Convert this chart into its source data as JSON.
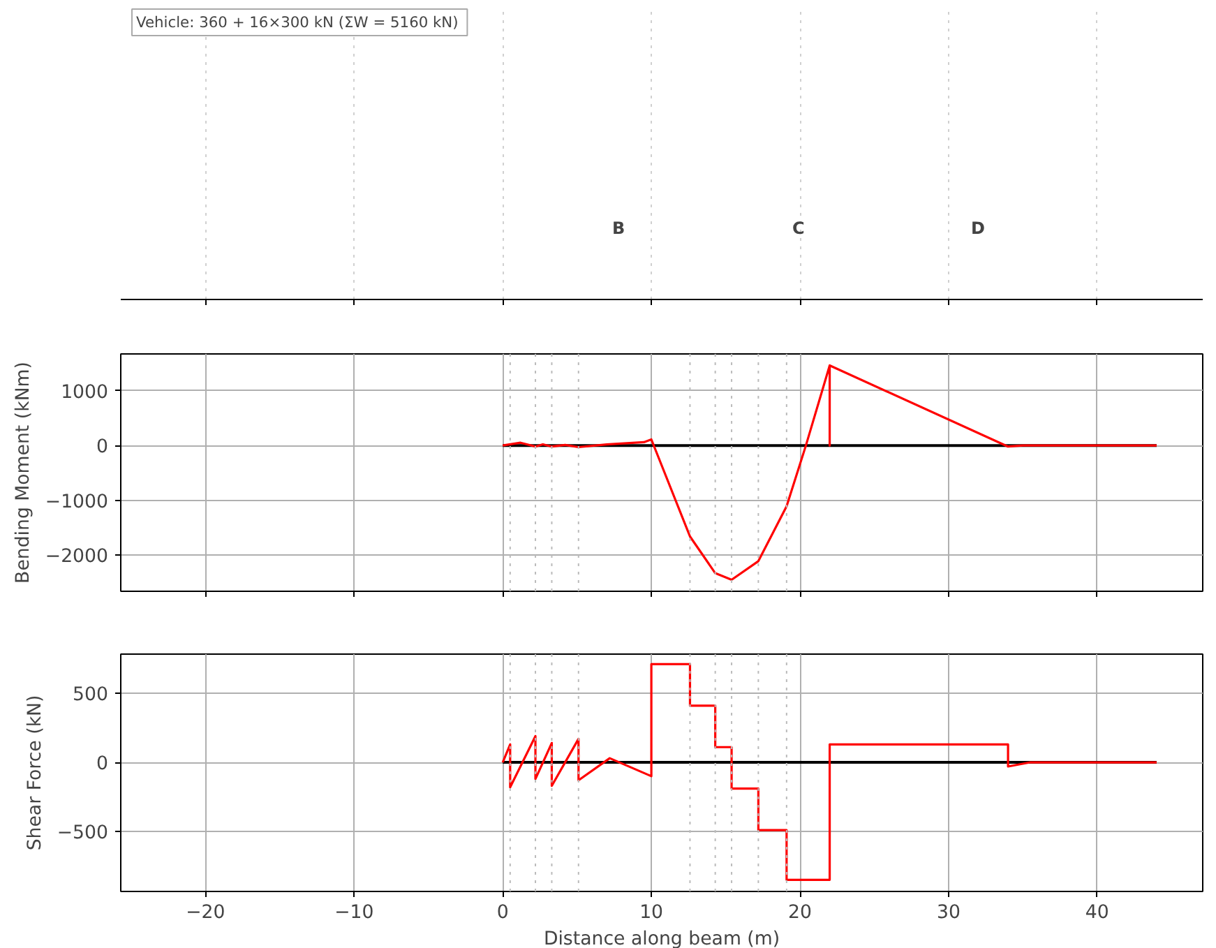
{
  "chart_data": [
    {
      "type": "other",
      "annotations": [
        "Vehicle: 360 + 16×300 kN  (ΣW = 5160 kN)",
        "B",
        "C",
        "D"
      ]
    },
    {
      "type": "line",
      "ylabel": "Bending Moment (kNm)",
      "xlim": [
        -25.7,
        47.1
      ],
      "ylim": [
        -2660,
        1670
      ],
      "xticks": [
        -20,
        -10,
        0,
        10,
        20,
        30,
        40
      ],
      "yticks": [
        -2000,
        -1000,
        0,
        1000
      ],
      "grid": true,
      "tick_labels": "y",
      "series": [
        {
          "color": "#000000",
          "x": [
            0,
            44
          ],
          "values": [
            0,
            0
          ]
        },
        {
          "color": "#ff0000",
          "x": [
            0,
            1.2,
            2.2,
            2.7,
            3.3,
            4.2,
            5.1,
            7,
            9.5,
            10,
            12.6,
            14.3,
            15.4,
            17.2,
            19.1,
            20.4,
            22,
            22,
            22,
            34,
            35,
            44
          ],
          "values": [
            0,
            50,
            -20,
            20,
            -20,
            10,
            -30,
            20,
            60,
            110,
            -1660,
            -2330,
            -2450,
            -2110,
            -1110,
            0,
            1460,
            0,
            1460,
            -20,
            0,
            0
          ]
        }
      ],
      "ref_lines": [
        {
          "axis": "x",
          "value": 0.5,
          "color": "#bbbbbb",
          "line_style": "dotted"
        },
        {
          "axis": "x",
          "value": 2.2,
          "color": "#bbbbbb",
          "line_style": "dotted"
        },
        {
          "axis": "x",
          "value": 3.3,
          "color": "#bbbbbb",
          "line_style": "dotted"
        },
        {
          "axis": "x",
          "value": 5.1,
          "color": "#bbbbbb",
          "line_style": "dotted"
        },
        {
          "axis": "x",
          "value": 12.6,
          "color": "#bbbbbb",
          "line_style": "dotted"
        },
        {
          "axis": "x",
          "value": 14.3,
          "color": "#bbbbbb",
          "line_style": "dotted"
        },
        {
          "axis": "x",
          "value": 15.4,
          "color": "#bbbbbb",
          "line_style": "dotted"
        },
        {
          "axis": "x",
          "value": 17.2,
          "color": "#bbbbbb",
          "line_style": "dotted"
        },
        {
          "axis": "x",
          "value": 19.1,
          "color": "#bbbbbb",
          "line_style": "dotted"
        }
      ]
    },
    {
      "type": "line",
      "ylabel": "Shear Force (kN)",
      "xlabel": "Distance along beam (m)",
      "xlim": [
        -25.7,
        47.1
      ],
      "ylim": [
        -934,
        783
      ],
      "xticks": [
        -20,
        -10,
        0,
        10,
        20,
        30,
        40
      ],
      "yticks": [
        -500,
        0,
        500
      ],
      "grid": true,
      "series": [
        {
          "color": "#000000",
          "x": [
            0,
            44
          ],
          "values": [
            0,
            0
          ]
        },
        {
          "color": "#ff0000",
          "x": [
            0,
            0.5,
            0.5,
            2.2,
            2.2,
            3.3,
            3.3,
            5.1,
            5.1,
            7.2,
            10,
            10,
            12.6,
            12.6,
            14.3,
            14.3,
            15.4,
            15.4,
            17.2,
            17.2,
            19.1,
            19.1,
            22,
            22,
            34,
            34,
            35.5,
            44
          ],
          "values": [
            0,
            130,
            -180,
            190,
            -120,
            140,
            -170,
            170,
            -130,
            30,
            -100,
            710,
            710,
            410,
            410,
            110,
            110,
            -190,
            -190,
            -490,
            -490,
            -850,
            -850,
            130,
            130,
            -30,
            0,
            0
          ]
        }
      ],
      "ref_lines": [
        {
          "axis": "x",
          "value": 0.5,
          "color": "#bbbbbb",
          "line_style": "dotted"
        },
        {
          "axis": "x",
          "value": 2.2,
          "color": "#bbbbbb",
          "line_style": "dotted"
        },
        {
          "axis": "x",
          "value": 3.3,
          "color": "#bbbbbb",
          "line_style": "dotted"
        },
        {
          "axis": "x",
          "value": 5.1,
          "color": "#bbbbbb",
          "line_style": "dotted"
        },
        {
          "axis": "x",
          "value": 12.6,
          "color": "#bbbbbb",
          "line_style": "dotted"
        },
        {
          "axis": "x",
          "value": 14.3,
          "color": "#bbbbbb",
          "line_style": "dotted"
        },
        {
          "axis": "x",
          "value": 15.4,
          "color": "#bbbbbb",
          "line_style": "dotted"
        },
        {
          "axis": "x",
          "value": 17.2,
          "color": "#bbbbbb",
          "line_style": "dotted"
        },
        {
          "axis": "x",
          "value": 19.1,
          "color": "#bbbbbb",
          "line_style": "dotted"
        }
      ]
    }
  ]
}
